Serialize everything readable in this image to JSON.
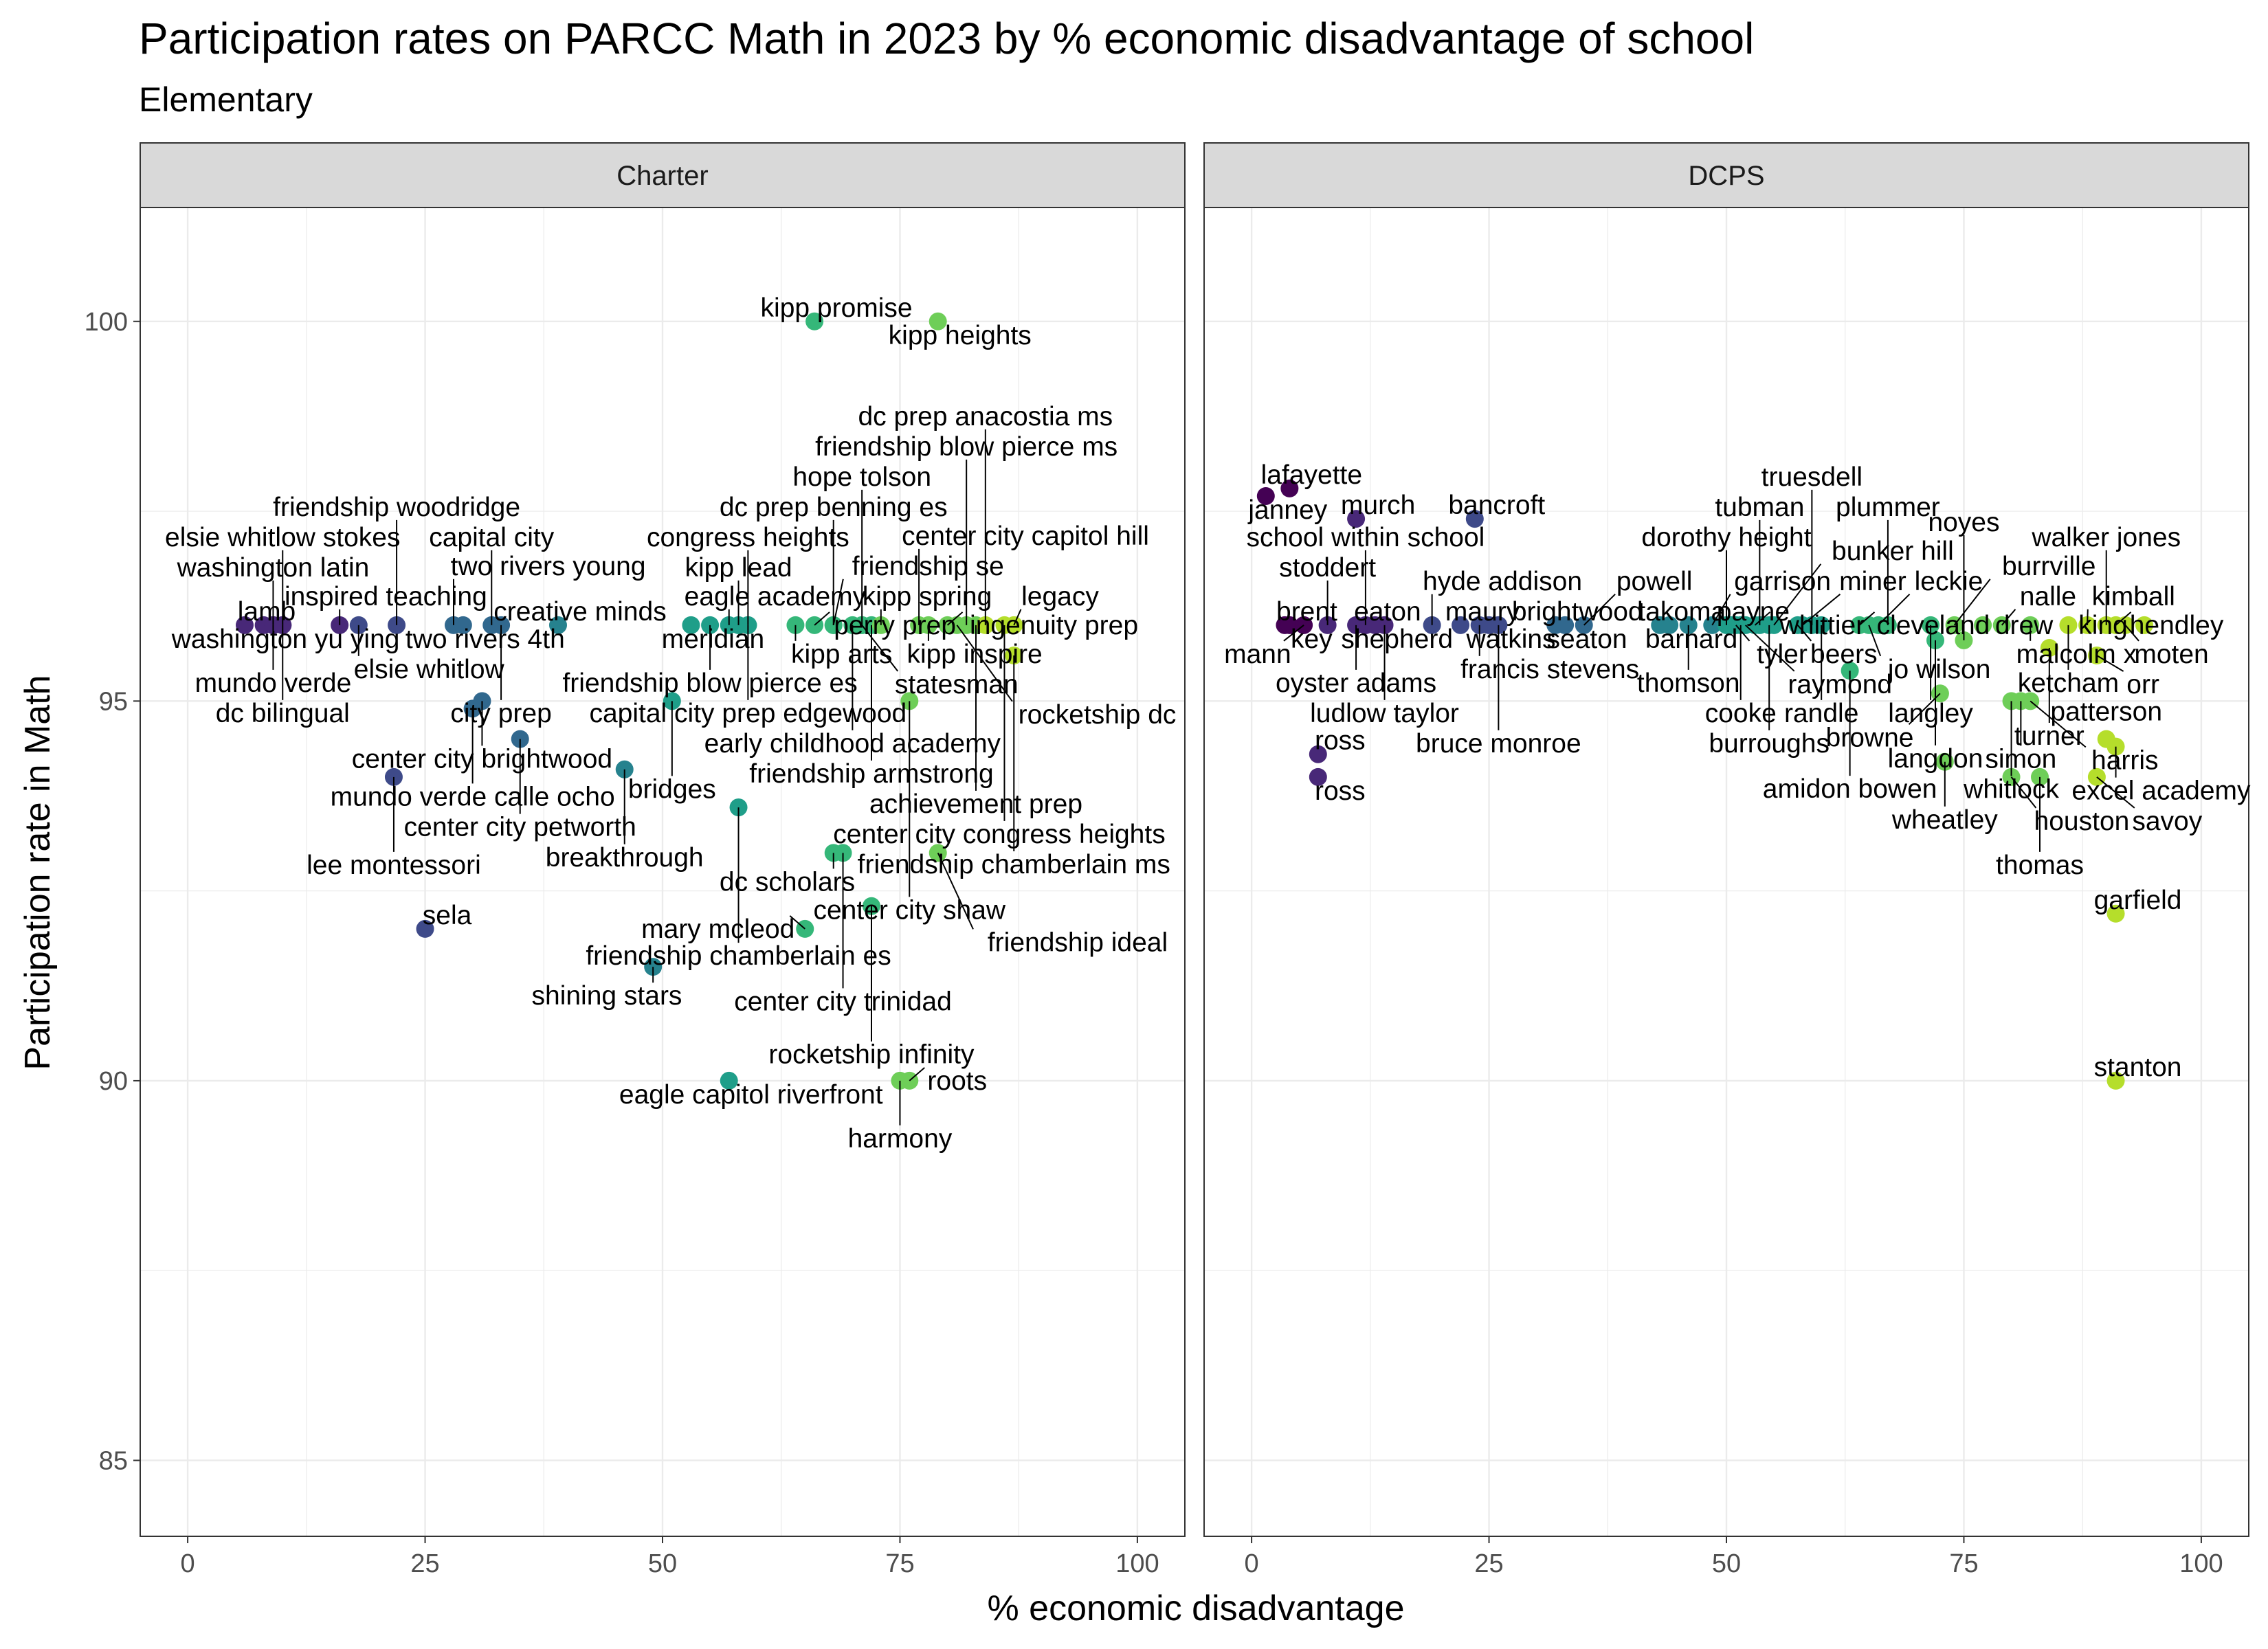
{
  "chart_data": {
    "type": "scatter",
    "title": "Participation rates on PARCC Math in 2023 by % economic disadvantage of school",
    "subtitle": "Elementary",
    "xlabel": "% economic disadvantage",
    "ylabel": "Participation rate in Math",
    "xlim": [
      -5,
      105
    ],
    "ylim": [
      84,
      101.5
    ],
    "x_ticks": [
      0,
      25,
      50,
      75,
      100
    ],
    "y_ticks": [
      85,
      90,
      95,
      100
    ],
    "grid": true,
    "color_scale": "viridis (by % economic disadvantage)",
    "facets": [
      {
        "name": "Charter",
        "points": [
          {
            "label": "kipp promise",
            "x": 66,
            "y": 100
          },
          {
            "label": "kipp heights",
            "x": 79,
            "y": 100
          },
          {
            "label": "lamb",
            "x": 6,
            "y": 96
          },
          {
            "label": "washington yu ying",
            "x": 8,
            "y": 96
          },
          {
            "label": "washington latin",
            "x": 9,
            "y": 96
          },
          {
            "label": "elsie whitlow stokes",
            "x": 10,
            "y": 96
          },
          {
            "label": "dc bilingual",
            "x": 10,
            "y": 96
          },
          {
            "label": "mundo verde",
            "x": 9,
            "y": 96
          },
          {
            "label": "inspired teaching",
            "x": 16,
            "y": 96
          },
          {
            "label": "elsie whitlow",
            "x": 18,
            "y": 96
          },
          {
            "label": "friendship woodridge",
            "x": 22,
            "y": 96
          },
          {
            "label": "two rivers young",
            "x": 28,
            "y": 96
          },
          {
            "label": "two rivers 4th",
            "x": 29,
            "y": 96
          },
          {
            "label": "capital city",
            "x": 32,
            "y": 96
          },
          {
            "label": "city prep",
            "x": 33,
            "y": 96
          },
          {
            "label": "creative minds",
            "x": 39,
            "y": 96
          },
          {
            "label": "center city brightwood",
            "x": 31,
            "y": 95
          },
          {
            "label": "mundo verde calle ocho",
            "x": 30,
            "y": 94.9
          },
          {
            "label": "lee montessori",
            "x": 21.7,
            "y": 94
          },
          {
            "label": "center city petworth",
            "x": 35,
            "y": 94.5
          },
          {
            "label": "sela",
            "x": 25,
            "y": 92
          },
          {
            "label": "breakthrough",
            "x": 46,
            "y": 94.1
          },
          {
            "label": "bridges",
            "x": 51,
            "y": 95
          },
          {
            "label": "meridian",
            "x": 53,
            "y": 96
          },
          {
            "label": "friendship blow pierce es",
            "x": 55,
            "y": 96
          },
          {
            "label": "eagle academy",
            "x": 57,
            "y": 96
          },
          {
            "label": "kipp lead",
            "x": 58,
            "y": 96
          },
          {
            "label": "congress heights",
            "x": 59,
            "y": 96
          },
          {
            "label": "capital city prep edgewood",
            "x": 59,
            "y": 96
          },
          {
            "label": "kipp arts",
            "x": 64,
            "y": 96
          },
          {
            "label": "friendship chamberlain es",
            "x": 58,
            "y": 93.6
          },
          {
            "label": "shining stars",
            "x": 49,
            "y": 91.5
          },
          {
            "label": "eagle capitol riverfront",
            "x": 57,
            "y": 90
          },
          {
            "label": "perry prep",
            "x": 66,
            "y": 96
          },
          {
            "label": "friendship se",
            "x": 68,
            "y": 96
          },
          {
            "label": "early childhood academy",
            "x": 70,
            "y": 96
          },
          {
            "label": "friendship armstrong",
            "x": 72,
            "y": 96
          },
          {
            "label": "statesman",
            "x": 71,
            "y": 96
          },
          {
            "label": "kipp spring",
            "x": 73,
            "y": 96
          },
          {
            "label": "dc prep benning es",
            "x": 68,
            "y": 96
          },
          {
            "label": "dc scholars",
            "x": 68,
            "y": 93
          },
          {
            "label": "center city trinidad",
            "x": 69,
            "y": 93
          },
          {
            "label": "hope tolson",
            "x": 71,
            "y": 96
          },
          {
            "label": "rocketship infinity",
            "x": 72,
            "y": 92.3
          },
          {
            "label": "mary mcleod",
            "x": 65,
            "y": 92
          },
          {
            "label": "harmony",
            "x": 75,
            "y": 90
          },
          {
            "label": "roots",
            "x": 76,
            "y": 90
          },
          {
            "label": "center city shaw",
            "x": 76,
            "y": 95
          },
          {
            "label": "friendship ideal",
            "x": 79,
            "y": 93
          },
          {
            "label": "center city capitol hill",
            "x": 77,
            "y": 96
          },
          {
            "label": "kipp inspire",
            "x": 78,
            "y": 96
          },
          {
            "label": "ingenuity prep",
            "x": 80,
            "y": 96
          },
          {
            "label": "rocketship dc",
            "x": 81,
            "y": 96
          },
          {
            "label": "friendship blow pierce ms",
            "x": 82,
            "y": 96
          },
          {
            "label": "achievement prep",
            "x": 83,
            "y": 96
          },
          {
            "label": "dc prep anacostia ms",
            "x": 84,
            "y": 96
          },
          {
            "label": "center city congress heights",
            "x": 86,
            "y": 96
          },
          {
            "label": "legacy",
            "x": 87,
            "y": 96
          },
          {
            "label": "friendship chamberlain ms",
            "x": 87,
            "y": 95.6
          }
        ]
      },
      {
        "name": "DCPS",
        "points": [
          {
            "label": "lafayette",
            "x": 4,
            "y": 97.8
          },
          {
            "label": "janney",
            "x": 1.5,
            "y": 97.7
          },
          {
            "label": "murch",
            "x": 11,
            "y": 97.4
          },
          {
            "label": "bancroft",
            "x": 23.5,
            "y": 97.4
          },
          {
            "label": "school within school",
            "x": 12,
            "y": 96
          },
          {
            "label": "brent",
            "x": 3.5,
            "y": 96
          },
          {
            "label": "key",
            "x": 4,
            "y": 96
          },
          {
            "label": "mann",
            "x": 5.5,
            "y": 96
          },
          {
            "label": "stoddert",
            "x": 8,
            "y": 96
          },
          {
            "label": "oyster adams",
            "x": 11,
            "y": 96
          },
          {
            "label": "eaton",
            "x": 12,
            "y": 96
          },
          {
            "label": "shepherd",
            "x": 13,
            "y": 96
          },
          {
            "label": "ludlow taylor",
            "x": 14,
            "y": 96
          },
          {
            "label": "hyde addison",
            "x": 19,
            "y": 96
          },
          {
            "label": "maury",
            "x": 22,
            "y": 96
          },
          {
            "label": "francis stevens",
            "x": 24,
            "y": 96
          },
          {
            "label": "watkins",
            "x": 25,
            "y": 96
          },
          {
            "label": "bruce monroe",
            "x": 26,
            "y": 96
          },
          {
            "label": "ross",
            "x": 7,
            "y": 94.3
          },
          {
            "label": "ross",
            "x": 7,
            "y": 94
          },
          {
            "label": "brightwood",
            "x": 32,
            "y": 96
          },
          {
            "label": "seaton",
            "x": 33,
            "y": 96
          },
          {
            "label": "powell",
            "x": 35,
            "y": 96
          },
          {
            "label": "takoma",
            "x": 43,
            "y": 96
          },
          {
            "label": "barnard",
            "x": 44,
            "y": 96
          },
          {
            "label": "thomson",
            "x": 46,
            "y": 96
          },
          {
            "label": "garrison",
            "x": 48.5,
            "y": 96
          },
          {
            "label": "dorothy height",
            "x": 50,
            "y": 96
          },
          {
            "label": "payne",
            "x": 50.5,
            "y": 96
          },
          {
            "label": "tyler",
            "x": 51,
            "y": 96
          },
          {
            "label": "cooke",
            "x": 51.5,
            "y": 96
          },
          {
            "label": "raymond",
            "x": 52,
            "y": 96
          },
          {
            "label": "whittier",
            "x": 53,
            "y": 96
          },
          {
            "label": "tubman",
            "x": 53.5,
            "y": 96
          },
          {
            "label": "burroughs",
            "x": 54.5,
            "y": 96
          },
          {
            "label": "bunker hill",
            "x": 55,
            "y": 96
          },
          {
            "label": "beers",
            "x": 57.5,
            "y": 96
          },
          {
            "label": "miner",
            "x": 58,
            "y": 96
          },
          {
            "label": "truesdell",
            "x": 59,
            "y": 96
          },
          {
            "label": "randle",
            "x": 60,
            "y": 96
          },
          {
            "label": "amidon bowen",
            "x": 63,
            "y": 95.4
          },
          {
            "label": "cleveland",
            "x": 64,
            "y": 96
          },
          {
            "label": "jo wilson",
            "x": 65,
            "y": 96
          },
          {
            "label": "leckie",
            "x": 66,
            "y": 96
          },
          {
            "label": "plummer",
            "x": 67,
            "y": 96
          },
          {
            "label": "langley",
            "x": 71.5,
            "y": 96
          },
          {
            "label": "langdon",
            "x": 72,
            "y": 95.8
          },
          {
            "label": "browne",
            "x": 72.5,
            "y": 95.1
          },
          {
            "label": "wheatley",
            "x": 73,
            "y": 94.2
          },
          {
            "label": "burrville",
            "x": 74,
            "y": 96
          },
          {
            "label": "noyes",
            "x": 75,
            "y": 95.8
          },
          {
            "label": "drew",
            "x": 77,
            "y": 96
          },
          {
            "label": "nalle",
            "x": 79,
            "y": 96
          },
          {
            "label": "houston",
            "x": 80,
            "y": 94
          },
          {
            "label": "whitlock",
            "x": 80,
            "y": 95
          },
          {
            "label": "simon",
            "x": 81,
            "y": 95
          },
          {
            "label": "malcolm x",
            "x": 82,
            "y": 96
          },
          {
            "label": "harris",
            "x": 82,
            "y": 95
          },
          {
            "label": "thomas",
            "x": 83,
            "y": 94
          },
          {
            "label": "turner",
            "x": 84,
            "y": 95.7
          },
          {
            "label": "ketcham",
            "x": 86,
            "y": 96
          },
          {
            "label": "kimball",
            "x": 88,
            "y": 96
          },
          {
            "label": "orr",
            "x": 89,
            "y": 95.6
          },
          {
            "label": "savoy",
            "x": 89,
            "y": 94
          },
          {
            "label": "patterson",
            "x": 90,
            "y": 94.5
          },
          {
            "label": "excel academy",
            "x": 91,
            "y": 94.4
          },
          {
            "label": "walker jones",
            "x": 90,
            "y": 96
          },
          {
            "label": "hendley",
            "x": 91,
            "y": 96
          },
          {
            "label": "moten",
            "x": 92,
            "y": 96
          },
          {
            "label": "king",
            "x": 94,
            "y": 96
          },
          {
            "label": "garfield",
            "x": 91,
            "y": 92.2
          },
          {
            "label": "stanton",
            "x": 91,
            "y": 90
          }
        ]
      }
    ]
  }
}
